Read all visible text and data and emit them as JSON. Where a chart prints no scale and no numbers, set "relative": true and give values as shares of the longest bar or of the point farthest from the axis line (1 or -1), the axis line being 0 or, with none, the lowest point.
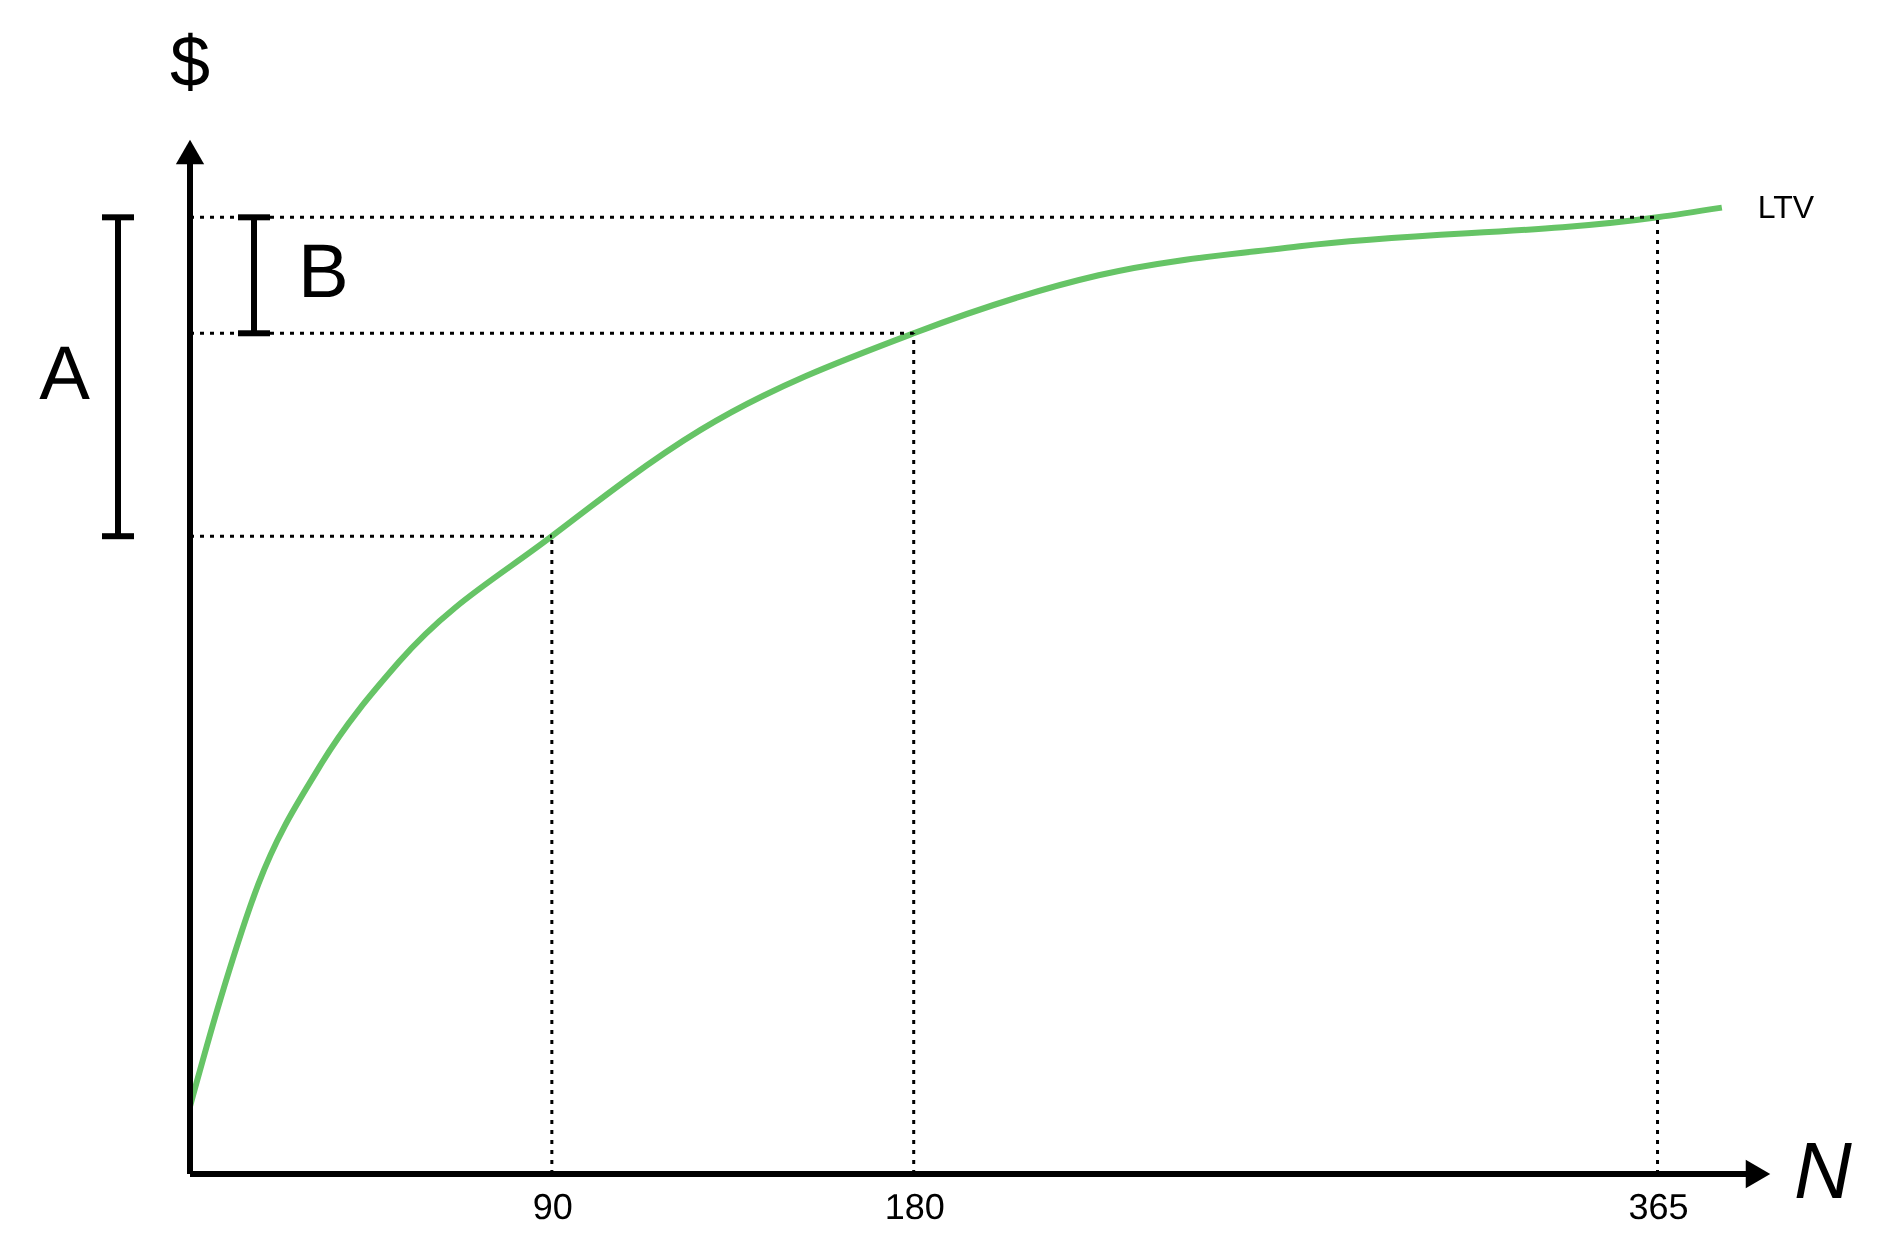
{
  "chart_data": {
    "type": "line",
    "relative": true,
    "xlabel": "N",
    "ylabel": "$",
    "xlim": [
      0,
      388
    ],
    "xticks": [
      90,
      180,
      365
    ],
    "tick_labels": "x",
    "series": [
      {
        "name": "LTV",
        "color": "#66c466",
        "x": [
          0,
          7.5,
          17,
          32,
          52,
          90,
          127,
          180,
          226,
          276,
          365,
          381
        ],
        "values": [
          0.07,
          0.18,
          0.3,
          0.42,
          0.53,
          0.66,
          0.77,
          0.87,
          0.93,
          0.96,
          0.99,
          1.0
        ]
      }
    ],
    "ref_lines": [
      {
        "axis": "x",
        "value": 90,
        "line_style": "dotted"
      },
      {
        "axis": "x",
        "value": 180,
        "line_style": "dotted"
      },
      {
        "axis": "x",
        "value": 365,
        "line_style": "dotted"
      },
      {
        "axis": "y",
        "value": 0.66,
        "line_style": "dotted"
      },
      {
        "axis": "y",
        "value": 0.87,
        "line_style": "dotted"
      },
      {
        "axis": "y",
        "value": 0.99,
        "line_style": "dotted"
      }
    ],
    "annotations": [
      "A",
      "B"
    ]
  }
}
